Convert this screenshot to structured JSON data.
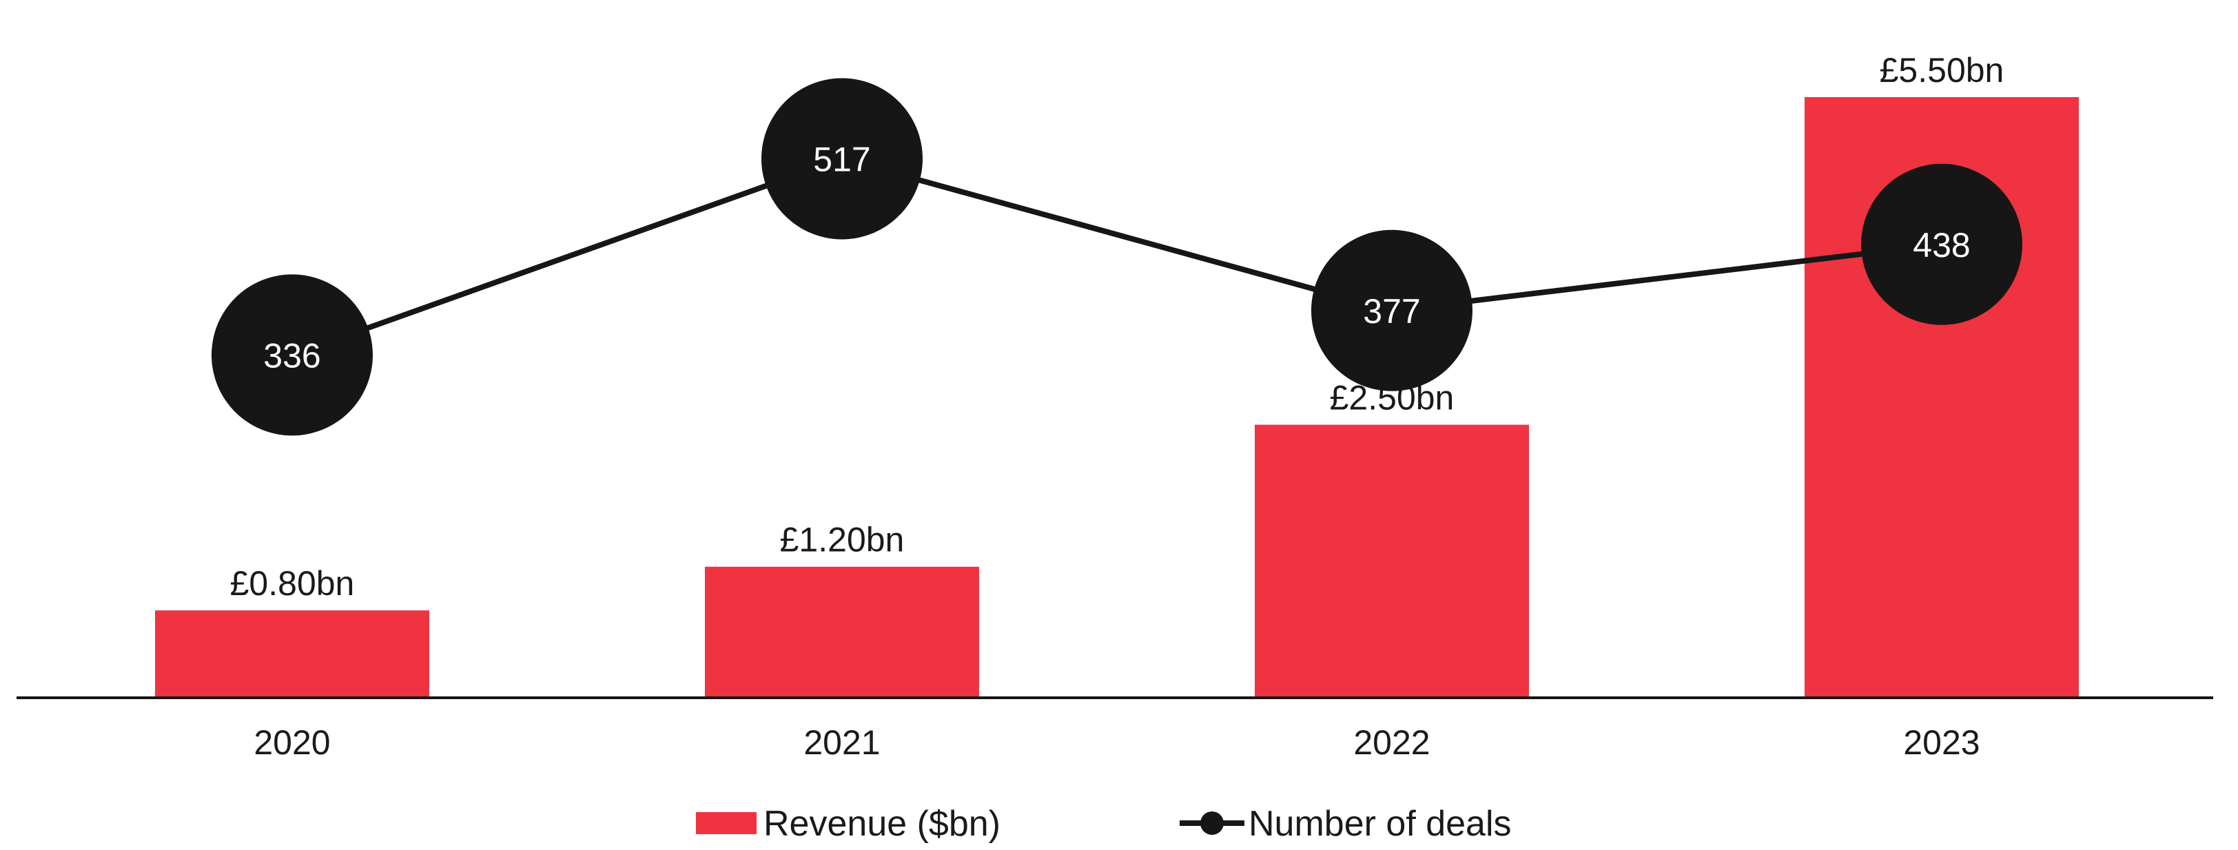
{
  "chart_data": {
    "type": "bar",
    "categories": [
      "2020",
      "2021",
      "2022",
      "2023"
    ],
    "series": [
      {
        "name": "Revenue ($bn)",
        "type": "bar",
        "values": [
          0.8,
          1.2,
          2.5,
          5.5
        ],
        "labels": [
          "£0.80bn",
          "£1.20bn",
          "£2.50bn",
          "£5.50bn"
        ],
        "color": "#ef3340"
      },
      {
        "name": "Number of deals",
        "type": "line",
        "values": [
          336,
          517,
          377,
          438
        ],
        "labels": [
          "336",
          "517",
          "377",
          "438"
        ],
        "color": "#161616"
      }
    ],
    "title": "",
    "xlabel": "",
    "ylabel": "",
    "legend_position": "bottom-center",
    "grid": false,
    "axes_visible": false
  }
}
